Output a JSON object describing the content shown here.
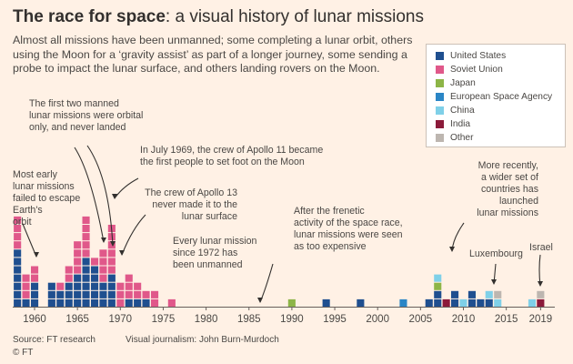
{
  "header": {
    "title_bold": "The race for space",
    "title_rest": ": a visual history of lunar missions",
    "subtitle": "Almost all missions have been unmanned; some completing a lunar orbit, others using the Moon for a ‘gravity assist’ as part of a longer journey, some sending a probe to impact the lunar surface, and others landing rovers on the Moon."
  },
  "legend": {
    "items": [
      {
        "label": "United States",
        "color": "#1f4f8f"
      },
      {
        "label": "Soviet Union",
        "color": "#e0588a"
      },
      {
        "label": "Japan",
        "color": "#8db547"
      },
      {
        "label": "European Space Agency",
        "color": "#2a86c6"
      },
      {
        "label": "China",
        "color": "#7fd0e8"
      },
      {
        "label": "India",
        "color": "#8b1a3a"
      },
      {
        "label": "Other",
        "color": "#bdb6b0"
      }
    ]
  },
  "chart_data": {
    "type": "bar",
    "stacked": true,
    "unit": "missions (one square per mission)",
    "x": [
      1958,
      1959,
      1960,
      1961,
      1962,
      1963,
      1964,
      1965,
      1966,
      1967,
      1968,
      1969,
      1970,
      1971,
      1972,
      1973,
      1974,
      1975,
      1976,
      1977,
      1978,
      1979,
      1980,
      1981,
      1982,
      1983,
      1984,
      1985,
      1986,
      1987,
      1988,
      1989,
      1990,
      1991,
      1992,
      1993,
      1994,
      1995,
      1996,
      1997,
      1998,
      1999,
      2000,
      2001,
      2002,
      2003,
      2004,
      2005,
      2006,
      2007,
      2008,
      2009,
      2010,
      2011,
      2012,
      2013,
      2014,
      2015,
      2016,
      2017,
      2018,
      2019
    ],
    "series": [
      {
        "name": "United States",
        "values": [
          7,
          1,
          3,
          0,
          3,
          2,
          3,
          4,
          6,
          5,
          3,
          4,
          0,
          1,
          1,
          1,
          0,
          0,
          0,
          0,
          0,
          0,
          0,
          0,
          0,
          0,
          0,
          0,
          0,
          0,
          0,
          0,
          0,
          0,
          0,
          0,
          1,
          0,
          0,
          0,
          1,
          0,
          0,
          0,
          0,
          0,
          0,
          0,
          1,
          2,
          0,
          2,
          0,
          2,
          1,
          1,
          0,
          0,
          0,
          0,
          0,
          0
        ]
      },
      {
        "name": "Soviet Union",
        "values": [
          4,
          3,
          2,
          0,
          0,
          1,
          2,
          4,
          5,
          1,
          4,
          6,
          3,
          3,
          2,
          1,
          2,
          0,
          1,
          0,
          0,
          0,
          0,
          0,
          0,
          0,
          0,
          0,
          0,
          0,
          0,
          0,
          0,
          0,
          0,
          0,
          0,
          0,
          0,
          0,
          0,
          0,
          0,
          0,
          0,
          0,
          0,
          0,
          0,
          0,
          0,
          0,
          0,
          0,
          0,
          0,
          0,
          0,
          0,
          0,
          0,
          0
        ]
      },
      {
        "name": "Japan",
        "values": [
          0,
          0,
          0,
          0,
          0,
          0,
          0,
          0,
          0,
          0,
          0,
          0,
          0,
          0,
          0,
          0,
          0,
          0,
          0,
          0,
          0,
          0,
          0,
          0,
          0,
          0,
          0,
          0,
          0,
          0,
          0,
          0,
          1,
          0,
          0,
          0,
          0,
          0,
          0,
          0,
          0,
          0,
          0,
          0,
          0,
          0,
          0,
          0,
          0,
          1,
          0,
          0,
          0,
          0,
          0,
          0,
          0,
          0,
          0,
          0,
          0,
          0
        ]
      },
      {
        "name": "European Space Agency",
        "values": [
          0,
          0,
          0,
          0,
          0,
          0,
          0,
          0,
          0,
          0,
          0,
          0,
          0,
          0,
          0,
          0,
          0,
          0,
          0,
          0,
          0,
          0,
          0,
          0,
          0,
          0,
          0,
          0,
          0,
          0,
          0,
          0,
          0,
          0,
          0,
          0,
          0,
          0,
          0,
          0,
          0,
          0,
          0,
          0,
          0,
          1,
          0,
          0,
          0,
          0,
          0,
          0,
          0,
          0,
          0,
          0,
          0,
          0,
          0,
          0,
          0,
          0
        ]
      },
      {
        "name": "China",
        "values": [
          0,
          0,
          0,
          0,
          0,
          0,
          0,
          0,
          0,
          0,
          0,
          0,
          0,
          0,
          0,
          0,
          0,
          0,
          0,
          0,
          0,
          0,
          0,
          0,
          0,
          0,
          0,
          0,
          0,
          0,
          0,
          0,
          0,
          0,
          0,
          0,
          0,
          0,
          0,
          0,
          0,
          0,
          0,
          0,
          0,
          0,
          0,
          0,
          0,
          1,
          0,
          0,
          1,
          0,
          0,
          1,
          1,
          0,
          0,
          0,
          1,
          0
        ]
      },
      {
        "name": "India",
        "values": [
          0,
          0,
          0,
          0,
          0,
          0,
          0,
          0,
          0,
          0,
          0,
          0,
          0,
          0,
          0,
          0,
          0,
          0,
          0,
          0,
          0,
          0,
          0,
          0,
          0,
          0,
          0,
          0,
          0,
          0,
          0,
          0,
          0,
          0,
          0,
          0,
          0,
          0,
          0,
          0,
          0,
          0,
          0,
          0,
          0,
          0,
          0,
          0,
          0,
          0,
          1,
          0,
          0,
          0,
          0,
          0,
          0,
          0,
          0,
          0,
          0,
          1
        ]
      },
      {
        "name": "Other",
        "values": [
          0,
          0,
          0,
          0,
          0,
          0,
          0,
          0,
          0,
          0,
          0,
          0,
          0,
          0,
          0,
          0,
          0,
          0,
          0,
          0,
          0,
          0,
          0,
          0,
          0,
          0,
          0,
          0,
          0,
          0,
          0,
          0,
          0,
          0,
          0,
          0,
          0,
          0,
          0,
          0,
          0,
          0,
          0,
          0,
          0,
          0,
          0,
          0,
          0,
          0,
          0,
          0,
          0,
          0,
          0,
          0,
          1,
          0,
          0,
          0,
          0,
          1
        ]
      }
    ],
    "xticks": [
      "1960",
      "1965",
      "1970",
      "1975",
      "1980",
      "1985",
      "1990",
      "1995",
      "2000",
      "2005",
      "2010",
      "2015",
      "2019"
    ],
    "annotations": [
      {
        "id": "early",
        "lines": [
          "Most early",
          "lunar missions",
          "failed to escape",
          "Earth's",
          "orbit"
        ]
      },
      {
        "id": "manned",
        "lines": [
          "The first two manned",
          "lunar missions were orbital",
          "only, and never landed"
        ]
      },
      {
        "id": "apollo11",
        "lines": [
          "In July 1969, the crew of Apollo 11 became",
          "the first people to set foot on the Moon"
        ]
      },
      {
        "id": "apollo13",
        "lines": [
          "The crew of Apollo 13",
          "never made it to the",
          "lunar surface"
        ]
      },
      {
        "id": "unmanned",
        "lines": [
          "Every lunar mission",
          "since 1972 has",
          "been unmanned"
        ]
      },
      {
        "id": "frenetic",
        "lines": [
          "After the frenetic",
          "activity of the space race,",
          "lunar missions were seen",
          "as too expensive"
        ]
      },
      {
        "id": "recent",
        "lines": [
          "More recently,",
          "a wider set of",
          "countries has",
          "launched",
          "lunar missions"
        ]
      },
      {
        "id": "luxembourg",
        "lines": [
          "Luxembourg"
        ]
      },
      {
        "id": "israel",
        "lines": [
          "Israel"
        ]
      }
    ]
  },
  "footer": {
    "source": "Source: FT research",
    "credit": "Visual journalism: John Burn-Murdoch",
    "copyright": "© FT"
  }
}
